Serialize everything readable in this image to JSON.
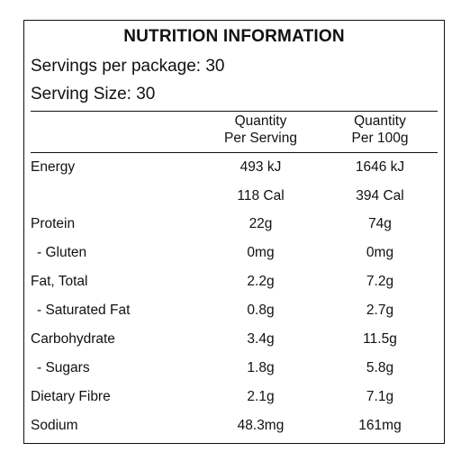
{
  "title": "NUTRITION INFORMATION",
  "servings_per_package": "Servings per package: 30",
  "serving_size": "Serving Size: 30",
  "columns": {
    "per_serving": [
      "Quantity",
      "Per Serving"
    ],
    "per_100g": [
      "Quantity",
      "Per 100g"
    ]
  },
  "rows": [
    {
      "name": "Energy",
      "per_serving": "493 kJ",
      "per_100g": "1646 kJ"
    },
    {
      "name": "",
      "per_serving": "118 Cal",
      "per_100g": "394 Cal"
    },
    {
      "name": "Protein",
      "per_serving": "22g",
      "per_100g": "74g"
    },
    {
      "name": "- Gluten",
      "per_serving": "0mg",
      "per_100g": "0mg"
    },
    {
      "name": "Fat, Total",
      "per_serving": "2.2g",
      "per_100g": "7.2g"
    },
    {
      "name": "- Saturated Fat",
      "per_serving": "0.8g",
      "per_100g": "2.7g"
    },
    {
      "name": "Carbohydrate",
      "per_serving": "3.4g",
      "per_100g": "11.5g"
    },
    {
      "name": "- Sugars",
      "per_serving": "1.8g",
      "per_100g": "5.8g"
    },
    {
      "name": "Dietary Fibre",
      "per_serving": "2.1g",
      "per_100g": "7.1g"
    },
    {
      "name": "Sodium",
      "per_serving": "48.3mg",
      "per_100g": "161mg"
    }
  ]
}
